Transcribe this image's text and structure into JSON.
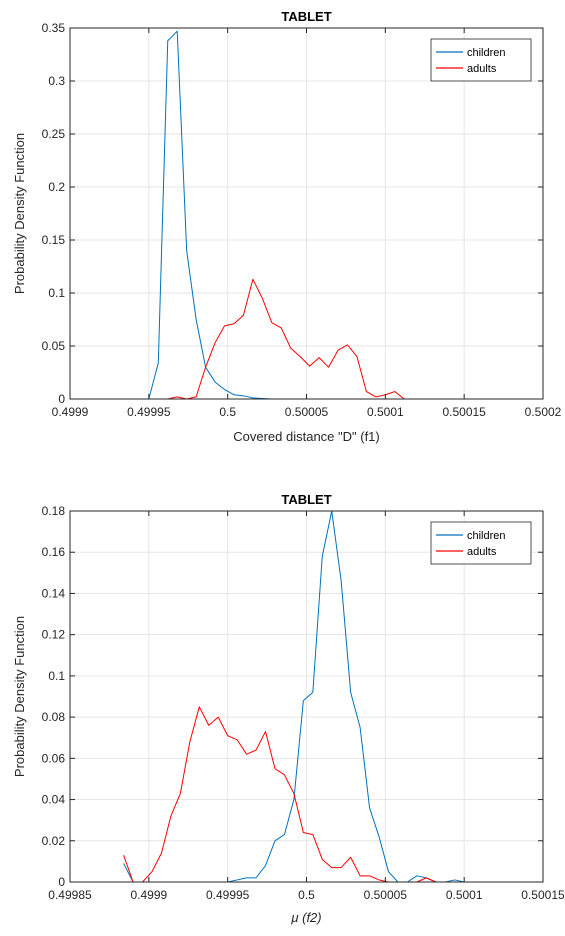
{
  "chart_data": [
    {
      "type": "line",
      "title": "TABLET",
      "xlabel": "Covered distance \"D\" (f1)",
      "ylabel": "Probability Density Function",
      "xlim": [
        0.4999,
        0.5002
      ],
      "ylim": [
        0,
        0.35
      ],
      "xticks": [
        0.4999,
        0.49995,
        0.5,
        0.50005,
        0.5001,
        0.50015,
        0.5002
      ],
      "xticklabels": [
        "0.4999",
        "0.49995",
        "0.5",
        "0.50005",
        "0.5001",
        "0.50015",
        "0.5002"
      ],
      "yticks": [
        0,
        0.05,
        0.1,
        0.15,
        0.2,
        0.25,
        0.3,
        0.35
      ],
      "yticklabels": [
        "0",
        "0.05",
        "0.1",
        "0.15",
        "0.2",
        "0.25",
        "0.3",
        "0.35"
      ],
      "grid": true,
      "legend_position": "top-right",
      "series": [
        {
          "name": "children",
          "color": "#0072bd",
          "x": [
            0.49995,
            0.499956,
            0.499962,
            0.499968,
            0.499974,
            0.49998,
            0.499986,
            0.499992,
            0.499998,
            0.500004,
            0.50001,
            0.500016,
            0.500022,
            0.500028,
            0.500034,
            0.50004,
            0.50005,
            0.50006,
            0.50008,
            0.5001,
            0.50012,
            0.50014,
            0.50016,
            0.500185
          ],
          "y": [
            0.0,
            0.034,
            0.338,
            0.347,
            0.14,
            0.075,
            0.03,
            0.016,
            0.009,
            0.004,
            0.003,
            0.001,
            0.0005,
            0.0,
            0.0,
            0.0,
            0.0,
            0.0,
            0.0,
            0.0,
            0.0,
            0.0,
            0.0,
            0.0
          ]
        },
        {
          "name": "adults",
          "color": "#ff0000",
          "x": [
            0.499956,
            0.499962,
            0.499968,
            0.499974,
            0.49998,
            0.499986,
            0.499992,
            0.499998,
            0.500004,
            0.50001,
            0.500016,
            0.500022,
            0.500028,
            0.500034,
            0.50004,
            0.500046,
            0.500052,
            0.500058,
            0.500064,
            0.50007,
            0.500076,
            0.500082,
            0.500088,
            0.500094,
            0.5001,
            0.500106,
            0.500112,
            0.500118,
            0.500124,
            0.50013,
            0.500136,
            0.500142,
            0.500148,
            0.50016,
            0.50017,
            0.500185
          ],
          "y": [
            0.0,
            0.0,
            0.002,
            0.0,
            0.002,
            0.03,
            0.053,
            0.069,
            0.071,
            0.079,
            0.113,
            0.095,
            0.072,
            0.067,
            0.048,
            0.04,
            0.031,
            0.039,
            0.03,
            0.046,
            0.051,
            0.04,
            0.007,
            0.002,
            0.004,
            0.007,
            0.0,
            0.0,
            0.0,
            0.0,
            0.0,
            0.0,
            0.0,
            0.0,
            0.0,
            0.0
          ]
        }
      ]
    },
    {
      "type": "line",
      "title": "TABLET",
      "xlabel": "μ (f2)",
      "ylabel": "Probability Density Function",
      "xlim": [
        0.49985,
        0.50015
      ],
      "ylim": [
        0,
        0.18
      ],
      "xticks": [
        0.49985,
        0.4999,
        0.49995,
        0.5,
        0.50005,
        0.5001,
        0.50015
      ],
      "xticklabels": [
        "0.49985",
        "0.4999",
        "0.49995",
        "0.5",
        "0.50005",
        "0.5001",
        "0.50015"
      ],
      "yticks": [
        0,
        0.02,
        0.04,
        0.06,
        0.08,
        0.1,
        0.12,
        0.14,
        0.16,
        0.18
      ],
      "yticklabels": [
        "0",
        "0.02",
        "0.04",
        "0.06",
        "0.08",
        "0.1",
        "0.12",
        "0.14",
        "0.16",
        "0.18"
      ],
      "grid": true,
      "legend_position": "top-right",
      "series": [
        {
          "name": "children",
          "color": "#0072bd",
          "x": [
            0.499884,
            0.49989,
            0.499896,
            0.499902,
            0.499908,
            0.499914,
            0.49992,
            0.499926,
            0.499932,
            0.499938,
            0.499944,
            0.49995,
            0.499956,
            0.499962,
            0.499968,
            0.499974,
            0.49998,
            0.499986,
            0.499992,
            0.499998,
            0.500004,
            0.50001,
            0.500016,
            0.500022,
            0.500028,
            0.500034,
            0.50004,
            0.500046,
            0.500052,
            0.500058,
            0.500064,
            0.50007,
            0.500076,
            0.500082,
            0.500088,
            0.500094,
            0.5001,
            0.500106,
            0.500112,
            0.50012,
            0.50013,
            0.50014
          ],
          "y": [
            0.009,
            0.0,
            0.0,
            0.0,
            0.0,
            0.0,
            0.0,
            0.0,
            0.0,
            0.0,
            0.0,
            0.0,
            0.001,
            0.002,
            0.002,
            0.008,
            0.02,
            0.023,
            0.04,
            0.088,
            0.092,
            0.158,
            0.18,
            0.146,
            0.092,
            0.075,
            0.036,
            0.022,
            0.005,
            0.0,
            0.0,
            0.003,
            0.002,
            0.0,
            0.0,
            0.001,
            0.0,
            0.0,
            0.0,
            0.0,
            0.0,
            0.0
          ]
        },
        {
          "name": "adults",
          "color": "#ff0000",
          "x": [
            0.499884,
            0.49989,
            0.499896,
            0.499902,
            0.499908,
            0.499914,
            0.49992,
            0.499926,
            0.499932,
            0.499938,
            0.499944,
            0.49995,
            0.499956,
            0.499962,
            0.499968,
            0.499974,
            0.49998,
            0.499986,
            0.499992,
            0.499998,
            0.500004,
            0.50001,
            0.500016,
            0.500022,
            0.500028,
            0.500034,
            0.50004,
            0.500046,
            0.500052,
            0.500058,
            0.500064,
            0.50007,
            0.500076,
            0.500082,
            0.500088,
            0.500094,
            0.5001,
            0.500106,
            0.500112,
            0.50012,
            0.50013,
            0.50014
          ],
          "y": [
            0.013,
            0.0,
            0.0,
            0.005,
            0.014,
            0.032,
            0.043,
            0.068,
            0.085,
            0.076,
            0.08,
            0.071,
            0.069,
            0.062,
            0.064,
            0.073,
            0.055,
            0.052,
            0.043,
            0.024,
            0.023,
            0.011,
            0.007,
            0.007,
            0.012,
            0.003,
            0.003,
            0.001,
            0.0,
            0.0,
            0.0,
            0.0,
            0.002,
            0.0,
            0.0,
            0.0,
            0.0,
            0.0,
            0.0,
            0.0,
            0.0,
            0.0
          ]
        }
      ]
    }
  ]
}
